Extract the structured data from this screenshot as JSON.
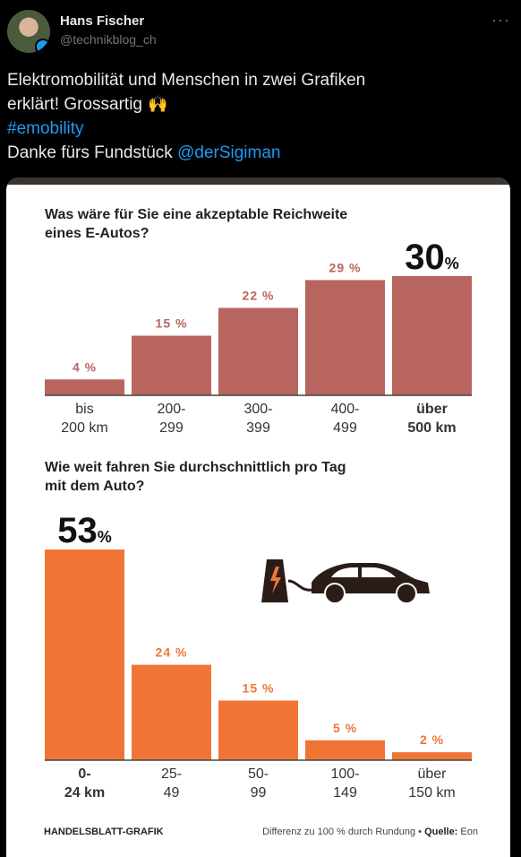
{
  "user": {
    "name": "Hans Fischer",
    "handle": "@technikblog_ch"
  },
  "tweet": {
    "line1": "Elektromobilität und Menschen in zwei Grafiken",
    "line2": "erklärt! Grossartig",
    "hashtag": "#emobility",
    "line4_text": "Danke fürs Fundstück ",
    "mention": "@derSigiman"
  },
  "icons": {
    "more": "more-icon",
    "emoji": "raising-hands-icon",
    "car": "ev-charging-car-icon"
  },
  "colors": {
    "chart1_bar": "#b86560",
    "chart2_bar": "#f07535",
    "text_dark": "#222222"
  },
  "chart_data": [
    {
      "type": "bar",
      "title": "Was wäre für Sie eine akzeptable Reichweite eines E-Autos?",
      "title_lines": [
        "Was wäre für Sie eine akzeptable Reichweite",
        "eines E-Autos?"
      ],
      "categories": [
        [
          "bis",
          "200 km"
        ],
        [
          "200-",
          "299"
        ],
        [
          "300-",
          "399"
        ],
        [
          "400-",
          "499"
        ],
        [
          "über",
          "500 km"
        ]
      ],
      "values": [
        4,
        15,
        22,
        29,
        30
      ],
      "labels": [
        "4 %",
        "15 %",
        "22 %",
        "29 %",
        "30%"
      ],
      "highlight_index": 4,
      "unit": "%",
      "ylim": [
        0,
        30
      ]
    },
    {
      "type": "bar",
      "title": "Wie weit fahren Sie durchschnittlich pro Tag mit dem Auto?",
      "title_lines": [
        "Wie weit fahren Sie durchschnittlich pro Tag",
        "mit dem Auto?"
      ],
      "categories": [
        [
          "0-",
          "24 km"
        ],
        [
          "25-",
          "49"
        ],
        [
          "50-",
          "99"
        ],
        [
          "100-",
          "149"
        ],
        [
          "über",
          "150 km"
        ]
      ],
      "values": [
        53,
        24,
        15,
        5,
        2
      ],
      "labels": [
        "53%",
        "24 %",
        "15 %",
        "5 %",
        "2 %"
      ],
      "highlight_index": 0,
      "unit": "%",
      "ylim": [
        0,
        53
      ]
    }
  ],
  "footer": {
    "source_org": "HANDELSBLATT-GRAFIK",
    "note": "Differenz zu 100 % durch Rundung •",
    "source_label": "Quelle:",
    "source_value": "Eon"
  }
}
